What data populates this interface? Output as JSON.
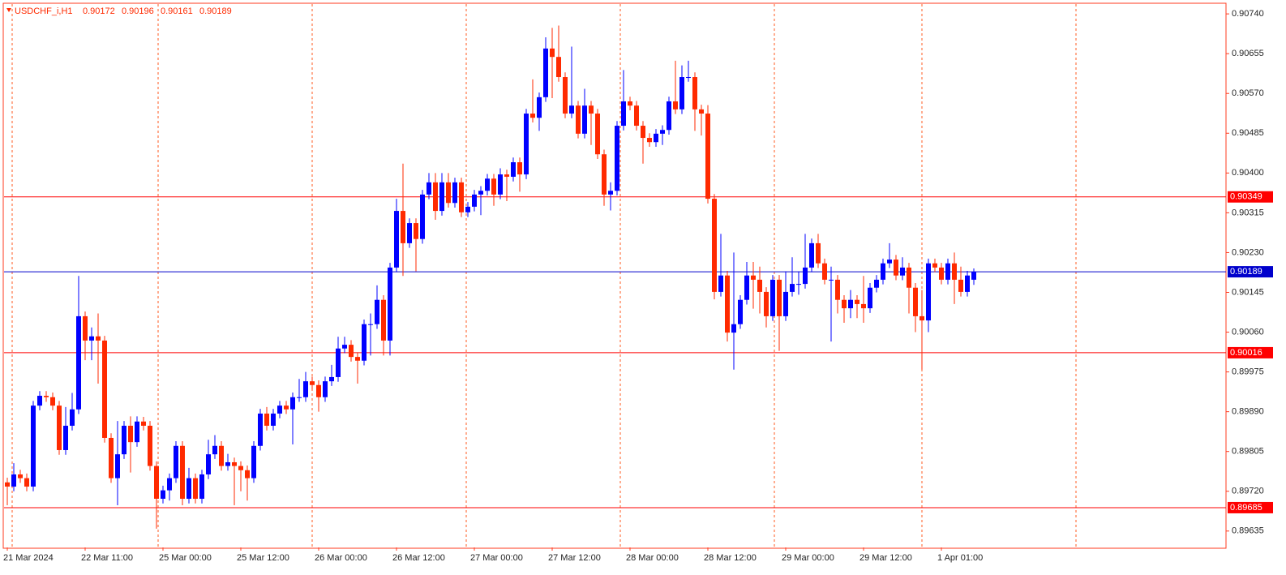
{
  "chart_data": {
    "type": "candlestick",
    "symbol": "USDCHF_i,H1",
    "categories": [
      "21 Mar 2024",
      null,
      null,
      null,
      null,
      null,
      null,
      null,
      null,
      null,
      null,
      null,
      "22 Mar 11:00",
      null,
      null,
      null,
      null,
      null,
      null,
      null,
      null,
      null,
      null,
      null,
      "25 Mar 00:00",
      null,
      null,
      null,
      null,
      null,
      null,
      null,
      null,
      null,
      null,
      null,
      "25 Mar 12:00",
      null,
      null,
      null,
      null,
      null,
      null,
      null,
      null,
      null,
      null,
      null,
      "26 Mar 00:00",
      null,
      null,
      null,
      null,
      null,
      null,
      null,
      null,
      null,
      null,
      null,
      "26 Mar 12:00",
      null,
      null,
      null,
      null,
      null,
      null,
      null,
      null,
      null,
      null,
      null,
      "27 Mar 00:00",
      null,
      null,
      null,
      null,
      null,
      null,
      null,
      null,
      null,
      null,
      null,
      "27 Mar 12:00",
      null,
      null,
      null,
      null,
      null,
      null,
      null,
      null,
      null,
      null,
      null,
      "28 Mar 00:00",
      null,
      null,
      null,
      null,
      null,
      null,
      null,
      null,
      null,
      null,
      null,
      "28 Mar 12:00",
      null,
      null,
      null,
      null,
      null,
      null,
      null,
      null,
      null,
      null,
      null,
      "29 Mar 00:00",
      null,
      null,
      null,
      null,
      null,
      null,
      null,
      null,
      null,
      null,
      null,
      "29 Mar 12:00",
      null,
      null,
      null,
      null,
      null,
      null,
      null,
      null,
      null,
      null,
      null,
      "1 Apr 01:00",
      null,
      null,
      null,
      null,
      null
    ],
    "series": {
      "up_color": "#0000ff",
      "down_color": "#ff2a00",
      "open": [
        0.89739,
        0.8973,
        0.89756,
        0.89748,
        0.8973,
        0.89903,
        0.89924,
        0.89921,
        0.89903,
        0.89808,
        0.8986,
        0.89895,
        0.90094,
        0.90042,
        0.90051,
        0.90042,
        0.89834,
        0.89748,
        0.89799,
        0.8986,
        0.89825,
        0.89869,
        0.8986,
        0.89774,
        0.89704,
        0.89722,
        0.89748,
        0.89817,
        0.89704,
        0.89748,
        0.89704,
        0.89756,
        0.89799,
        0.89817,
        0.89774,
        0.89782,
        0.89774,
        0.89765,
        0.89748,
        0.89817,
        0.89886,
        0.8986,
        0.89886,
        0.89903,
        0.89895,
        0.89921,
        0.89921,
        0.89955,
        0.89947,
        0.89921,
        0.89955,
        0.89964,
        0.90025,
        0.90033,
        0.90007,
        0.89999,
        0.90077,
        0.90077,
        0.90129,
        0.90042,
        0.90198,
        0.90319,
        0.9025,
        0.90293,
        0.90259,
        0.90354,
        0.9038,
        0.90319,
        0.9038,
        0.90336,
        0.9038,
        0.90316,
        0.90328,
        0.90354,
        0.90362,
        0.90388,
        0.90354,
        0.90397,
        0.90392,
        0.90423,
        0.90397,
        0.90527,
        0.90518,
        0.90562,
        0.90666,
        0.90648,
        0.90605,
        0.90527,
        0.90544,
        0.90484,
        0.90544,
        0.90527,
        0.9044,
        0.90354,
        0.90362,
        0.90501,
        0.90553,
        0.90544,
        0.90501,
        0.90475,
        0.90466,
        0.90484,
        0.90492,
        0.90553,
        0.90536,
        0.90605,
        0.90605,
        0.90536,
        0.90527,
        0.90345,
        0.90146,
        0.90181,
        0.90059,
        0.90077,
        0.90129,
        0.90181,
        0.90172,
        0.90146,
        0.90094,
        0.90172,
        0.90094,
        0.90146,
        0.90163,
        0.90163,
        0.90198,
        0.9025,
        0.90207,
        0.90172,
        0.90172,
        0.90129,
        0.90111,
        0.90129,
        0.9012,
        0.90111,
        0.90155,
        0.90172,
        0.90207,
        0.90215,
        0.90181,
        0.90198,
        0.90155,
        0.90094,
        0.90085,
        0.90207,
        0.90198,
        0.90172,
        0.90207,
        0.90172,
        0.90146,
        0.90172
      ],
      "high": [
        0.89749,
        0.8978,
        0.89766,
        0.89758,
        0.89913,
        0.89934,
        0.89934,
        0.89931,
        0.89913,
        0.899,
        0.8993,
        0.9018,
        0.90104,
        0.9007,
        0.901,
        0.90052,
        0.89844,
        0.8987,
        0.8987,
        0.8988,
        0.8988,
        0.89879,
        0.8987,
        0.89784,
        0.89732,
        0.89758,
        0.89827,
        0.89827,
        0.8977,
        0.89758,
        0.89766,
        0.8983,
        0.8984,
        0.89827,
        0.898,
        0.89792,
        0.89784,
        0.89775,
        0.89827,
        0.89896,
        0.899,
        0.89896,
        0.89913,
        0.89913,
        0.89931,
        0.8996,
        0.89975,
        0.89965,
        0.89957,
        0.89965,
        0.8999,
        0.9005,
        0.9005,
        0.90043,
        0.90017,
        0.90087,
        0.901,
        0.9016,
        0.90139,
        0.90208,
        0.90345,
        0.9042,
        0.90303,
        0.90303,
        0.90364,
        0.904,
        0.904,
        0.904,
        0.904,
        0.9039,
        0.9039,
        0.90338,
        0.90364,
        0.90372,
        0.90398,
        0.90398,
        0.9041,
        0.90407,
        0.90433,
        0.90433,
        0.90537,
        0.906,
        0.90572,
        0.9069,
        0.9071,
        0.90715,
        0.90615,
        0.9067,
        0.90554,
        0.9058,
        0.90554,
        0.90537,
        0.9045,
        0.9038,
        0.90511,
        0.9062,
        0.90563,
        0.90554,
        0.90511,
        0.90485,
        0.90494,
        0.90502,
        0.90563,
        0.9064,
        0.9063,
        0.9064,
        0.90615,
        0.90546,
        0.90545,
        0.90355,
        0.9027,
        0.90191,
        0.9023,
        0.90139,
        0.9021,
        0.9021,
        0.902,
        0.90156,
        0.90182,
        0.90182,
        0.9019,
        0.9022,
        0.9019,
        0.9027,
        0.9026,
        0.9027,
        0.90217,
        0.902,
        0.90182,
        0.90139,
        0.9015,
        0.90139,
        0.9018,
        0.90165,
        0.90182,
        0.90217,
        0.9025,
        0.90225,
        0.9022,
        0.90208,
        0.90165,
        0.9015,
        0.90217,
        0.90217,
        0.90208,
        0.90217,
        0.9023,
        0.902,
        0.90191,
        0.90196
      ],
      "low": [
        0.8969,
        0.8972,
        0.89738,
        0.8972,
        0.8972,
        0.89893,
        0.89911,
        0.89893,
        0.89798,
        0.89798,
        0.8985,
        0.89885,
        0.9,
        0.9,
        0.8995,
        0.89824,
        0.89738,
        0.8969,
        0.89789,
        0.8976,
        0.89815,
        0.8985,
        0.89764,
        0.8964,
        0.89694,
        0.897,
        0.89738,
        0.8969,
        0.89694,
        0.89694,
        0.89694,
        0.89746,
        0.89789,
        0.89764,
        0.89764,
        0.8969,
        0.8972,
        0.897,
        0.89738,
        0.89807,
        0.8985,
        0.8985,
        0.89876,
        0.89885,
        0.8982,
        0.89911,
        0.89911,
        0.89937,
        0.8989,
        0.89911,
        0.89945,
        0.89954,
        0.90015,
        0.89997,
        0.8995,
        0.89989,
        0.9001,
        0.90067,
        0.9001,
        0.9001,
        0.90188,
        0.9018,
        0.9024,
        0.9019,
        0.90249,
        0.90344,
        0.903,
        0.90309,
        0.90326,
        0.90326,
        0.90306,
        0.90306,
        0.90318,
        0.9031,
        0.90352,
        0.9033,
        0.90344,
        0.9034,
        0.90382,
        0.9036,
        0.90387,
        0.90508,
        0.9049,
        0.90552,
        0.9056,
        0.90595,
        0.90517,
        0.90517,
        0.90474,
        0.90474,
        0.9046,
        0.9043,
        0.9033,
        0.9032,
        0.90352,
        0.90491,
        0.90534,
        0.90491,
        0.9042,
        0.90456,
        0.90456,
        0.9046,
        0.90482,
        0.90526,
        0.90526,
        0.90595,
        0.9049,
        0.9048,
        0.90335,
        0.9013,
        0.90136,
        0.9004,
        0.8998,
        0.90067,
        0.90119,
        0.9011,
        0.901,
        0.9007,
        0.90084,
        0.9002,
        0.90084,
        0.90136,
        0.9014,
        0.90153,
        0.90188,
        0.90197,
        0.90162,
        0.9004,
        0.901,
        0.9008,
        0.9009,
        0.9009,
        0.9008,
        0.90101,
        0.90145,
        0.90162,
        0.90197,
        0.90171,
        0.90171,
        0.901,
        0.9006,
        0.8998,
        0.9006,
        0.90188,
        0.90162,
        0.90162,
        0.9012,
        0.90136,
        0.90136,
        0.90161
      ],
      "close": [
        0.8973,
        0.89756,
        0.89748,
        0.8973,
        0.89903,
        0.89924,
        0.89921,
        0.89903,
        0.89808,
        0.8986,
        0.89895,
        0.90094,
        0.90042,
        0.90051,
        0.90042,
        0.89834,
        0.89748,
        0.89799,
        0.8986,
        0.89825,
        0.89869,
        0.8986,
        0.89774,
        0.89704,
        0.89722,
        0.89748,
        0.89817,
        0.89704,
        0.89748,
        0.89704,
        0.89756,
        0.89799,
        0.89817,
        0.89774,
        0.89782,
        0.89774,
        0.89765,
        0.89748,
        0.89817,
        0.89886,
        0.8986,
        0.89886,
        0.89903,
        0.89895,
        0.89921,
        0.89921,
        0.89955,
        0.89947,
        0.89921,
        0.89955,
        0.89964,
        0.90025,
        0.90033,
        0.90007,
        0.89999,
        0.90077,
        0.90077,
        0.90129,
        0.90042,
        0.90198,
        0.90319,
        0.9025,
        0.90293,
        0.90259,
        0.90354,
        0.9038,
        0.90319,
        0.9038,
        0.90336,
        0.9038,
        0.90316,
        0.90328,
        0.90354,
        0.90362,
        0.90388,
        0.90354,
        0.90397,
        0.90392,
        0.90423,
        0.90397,
        0.90527,
        0.90518,
        0.90562,
        0.90666,
        0.90648,
        0.90605,
        0.90527,
        0.90544,
        0.90484,
        0.90544,
        0.90527,
        0.9044,
        0.90354,
        0.90362,
        0.90501,
        0.90553,
        0.90544,
        0.90501,
        0.90475,
        0.90466,
        0.90484,
        0.90492,
        0.90553,
        0.90536,
        0.90605,
        0.90605,
        0.90536,
        0.90527,
        0.90345,
        0.90146,
        0.90181,
        0.90059,
        0.90077,
        0.90129,
        0.90181,
        0.90172,
        0.90146,
        0.90094,
        0.90172,
        0.90094,
        0.90146,
        0.90163,
        0.90163,
        0.90198,
        0.9025,
        0.90207,
        0.90172,
        0.90172,
        0.90129,
        0.90111,
        0.90129,
        0.9012,
        0.90111,
        0.90155,
        0.90172,
        0.90207,
        0.90215,
        0.90181,
        0.90198,
        0.90155,
        0.90094,
        0.90085,
        0.90207,
        0.90198,
        0.90172,
        0.90207,
        0.90172,
        0.90146,
        0.90181,
        0.90189
      ]
    },
    "levels": [
      {
        "value": 0.90349,
        "color": "#ff0000"
      },
      {
        "value": 0.90189,
        "color": "#0000cc"
      },
      {
        "value": 0.90016,
        "color": "#ff0000"
      },
      {
        "value": 0.89685,
        "color": "#ff0000"
      }
    ],
    "ylim": [
      0.896,
      0.90761
    ],
    "yticks": [
      {
        "value": 0.9074,
        "label": "0.90740"
      },
      0.90655,
      {
        "value": 0.9057,
        "label": "0.90570"
      },
      0.90485,
      {
        "value": 0.904,
        "label": "0.90400"
      },
      0.90315,
      {
        "value": 0.9023,
        "label": "0.90230"
      },
      0.90145,
      {
        "value": 0.9006,
        "label": "0.90060"
      },
      0.89975,
      {
        "value": 0.8989,
        "label": "0.89890"
      },
      0.89805,
      {
        "value": 0.8972,
        "label": "0.89720"
      },
      0.89635
    ]
  }
}
